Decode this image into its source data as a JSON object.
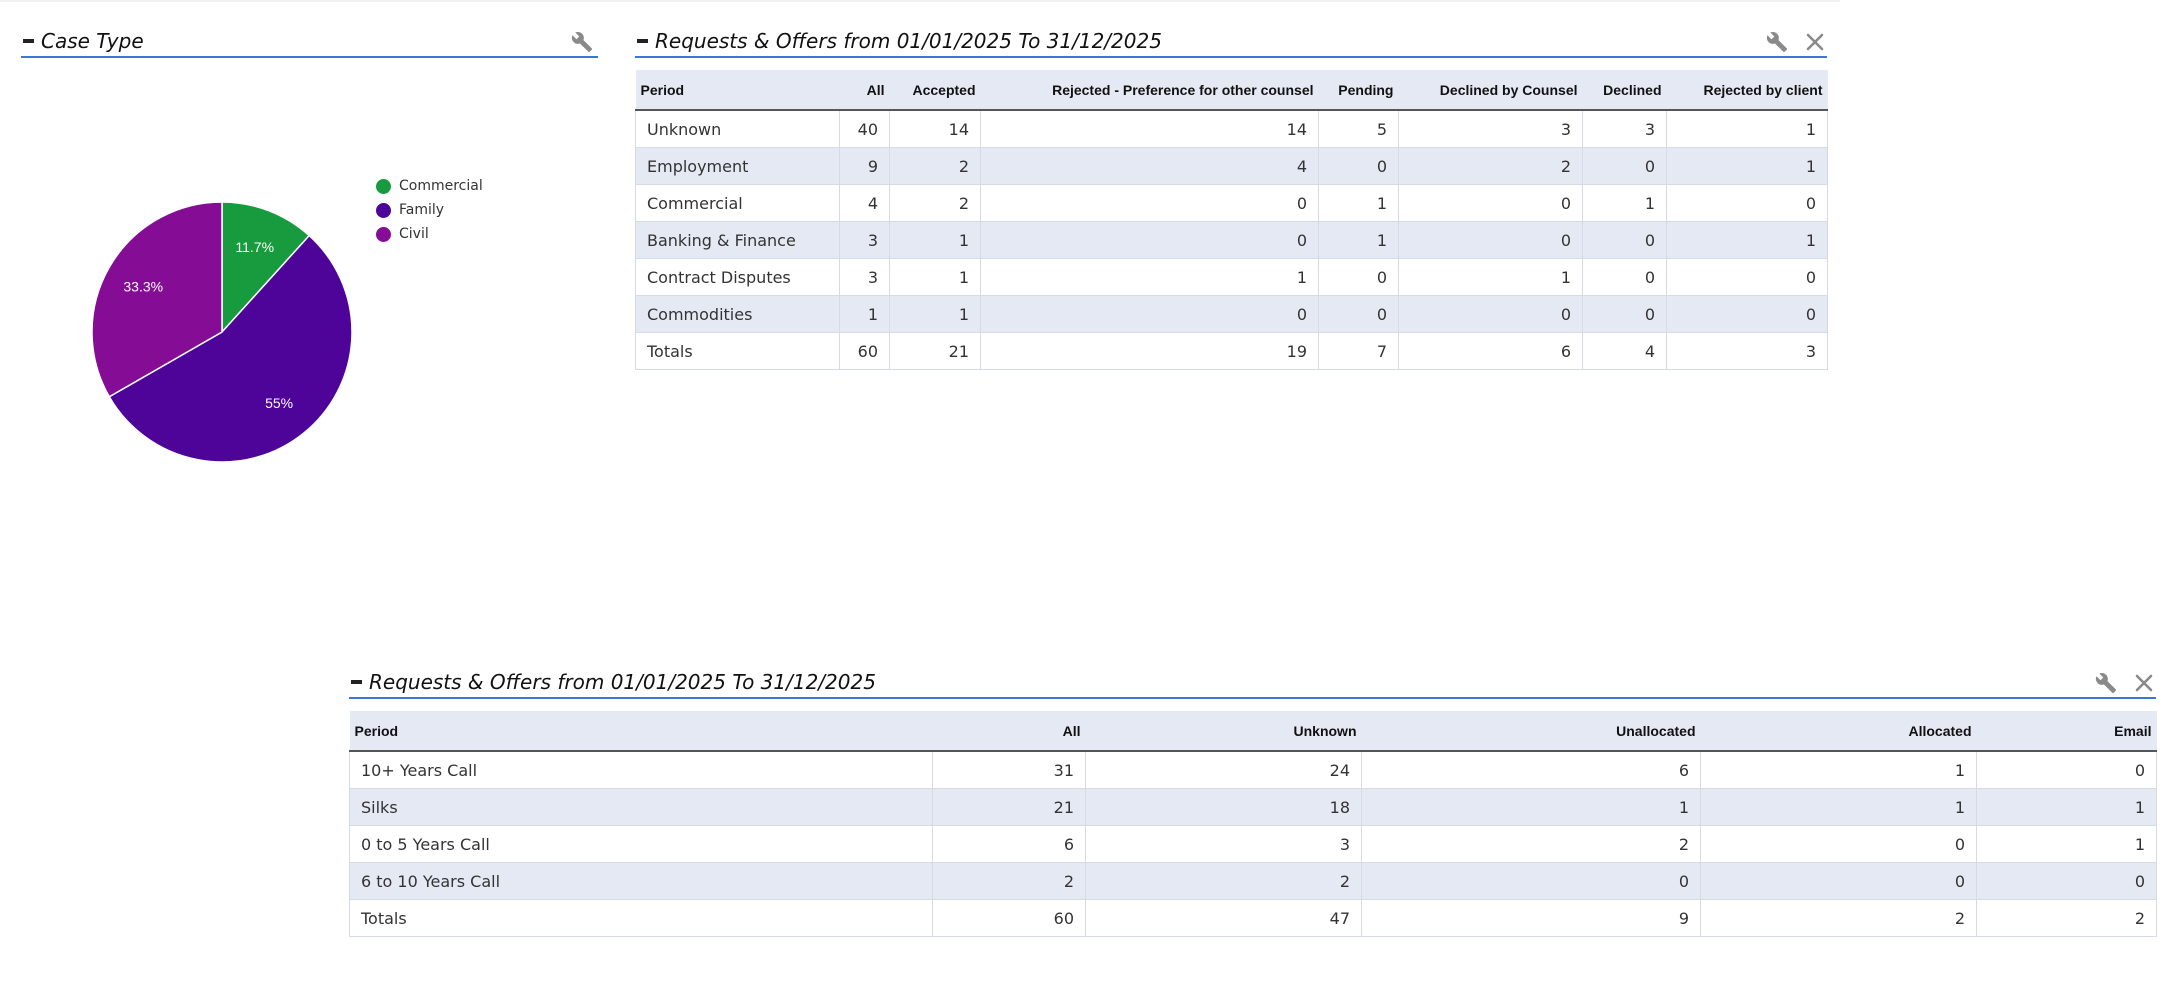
{
  "case_type": {
    "title": "Case Type",
    "chart_data": {
      "type": "pie",
      "title": "Case Type",
      "slices": [
        {
          "label": "Commercial",
          "value": 11.7,
          "display": "11.7%",
          "color": "#189a3e"
        },
        {
          "label": "Family",
          "value": 55,
          "display": "55%",
          "color": "#4e0399"
        },
        {
          "label": "Civil",
          "value": 33.3,
          "display": "33.3%",
          "color": "#850c94"
        }
      ],
      "legend_placement": "right"
    }
  },
  "requests_by_type": {
    "title": "Requests & Offers from 01/01/2025 To 31/12/2025",
    "columns": [
      "Period",
      "All",
      "Accepted",
      "Rejected - Preference for other counsel",
      "Pending",
      "Declined by Counsel",
      "Declined",
      "Rejected by client"
    ],
    "rows": [
      [
        "Unknown",
        "40",
        "14",
        "14",
        "5",
        "3",
        "3",
        "1"
      ],
      [
        "Employment",
        "9",
        "2",
        "4",
        "0",
        "2",
        "0",
        "1"
      ],
      [
        "Commercial",
        "4",
        "2",
        "0",
        "1",
        "0",
        "1",
        "0"
      ],
      [
        "Banking & Finance",
        "3",
        "1",
        "0",
        "1",
        "0",
        "0",
        "1"
      ],
      [
        "Contract Disputes",
        "3",
        "1",
        "1",
        "0",
        "1",
        "0",
        "0"
      ],
      [
        "Commodities",
        "1",
        "1",
        "0",
        "0",
        "0",
        "0",
        "0"
      ],
      [
        "Totals",
        "60",
        "21",
        "19",
        "7",
        "6",
        "4",
        "3"
      ]
    ]
  },
  "requests_by_seniority": {
    "title": "Requests & Offers from 01/01/2025 To 31/12/2025",
    "columns": [
      "Period",
      "All",
      "Unknown",
      "Unallocated",
      "Allocated",
      "Email"
    ],
    "rows": [
      [
        "10+ Years Call",
        "31",
        "24",
        "6",
        "1",
        "0"
      ],
      [
        "Silks",
        "21",
        "18",
        "1",
        "1",
        "1"
      ],
      [
        "0 to 5 Years Call",
        "6",
        "3",
        "2",
        "0",
        "1"
      ],
      [
        "6 to 10 Years Call",
        "2",
        "2",
        "0",
        "0",
        "0"
      ],
      [
        "Totals",
        "60",
        "47",
        "9",
        "2",
        "2"
      ]
    ]
  },
  "icons": {
    "settings": "wrench-icon",
    "close": "close-icon",
    "collapse": "minus-icon"
  }
}
